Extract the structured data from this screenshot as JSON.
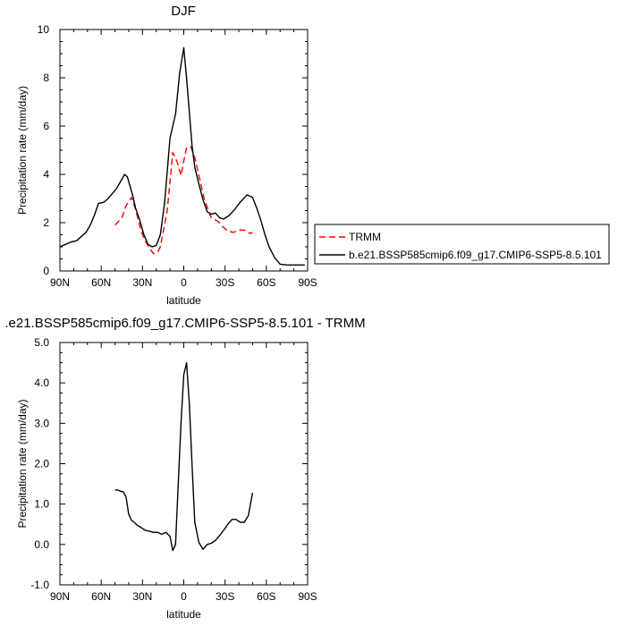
{
  "chart_data": [
    {
      "type": "line",
      "title": "DJF",
      "xlabel": "latitude",
      "ylabel": "Precipitation rate (mm/day)",
      "xlim": [
        90,
        -90
      ],
      "ylim": [
        0,
        10
      ],
      "xticks": [
        {
          "value": 90,
          "label": "90N"
        },
        {
          "value": 60,
          "label": "60N"
        },
        {
          "value": 30,
          "label": "30N"
        },
        {
          "value": 0,
          "label": "0"
        },
        {
          "value": -30,
          "label": "30S"
        },
        {
          "value": -60,
          "label": "60S"
        },
        {
          "value": -90,
          "label": "90S"
        }
      ],
      "yticks": [
        {
          "value": 0,
          "label": "0"
        },
        {
          "value": 2,
          "label": "2"
        },
        {
          "value": 4,
          "label": "4"
        },
        {
          "value": 6,
          "label": "6"
        },
        {
          "value": 8,
          "label": "8"
        },
        {
          "value": 10,
          "label": "10"
        }
      ],
      "legend": "right",
      "series": [
        {
          "name": "TRMM",
          "color": "#ff0000",
          "dash": true,
          "x": [
            50,
            45,
            42,
            38,
            35,
            31,
            28,
            25,
            22,
            19,
            17,
            12,
            8,
            5,
            2,
            0,
            -2,
            -5,
            -8,
            -12,
            -15,
            -20,
            -25,
            -28,
            -32,
            -36,
            -41,
            -45,
            -48,
            -50
          ],
          "y": [
            1.9,
            2.2,
            2.7,
            3.05,
            2.55,
            1.65,
            1.25,
            0.95,
            0.72,
            0.78,
            1.0,
            2.5,
            4.9,
            4.55,
            3.95,
            4.55,
            5.1,
            5.15,
            4.7,
            3.7,
            2.95,
            2.2,
            2.05,
            1.85,
            1.65,
            1.6,
            1.7,
            1.68,
            1.55,
            1.6
          ]
        },
        {
          "name": "b.e21.BSSP585cmip6.f09_g17.CMIP6-SSP5-8.5.101",
          "color": "#000000",
          "dash": false,
          "x": [
            90,
            86,
            82,
            78,
            75,
            71,
            68,
            65,
            62,
            58,
            55,
            52,
            49,
            45,
            43,
            41,
            39,
            37,
            35,
            32,
            29,
            26,
            23,
            20,
            17,
            14,
            10,
            6,
            3,
            0,
            -2,
            -4,
            -6,
            -8,
            -11,
            -14,
            -17,
            -20,
            -23,
            -26,
            -29,
            -33,
            -37,
            -41,
            -46,
            -50,
            -53,
            -56,
            -59,
            -62,
            -66,
            -70,
            -75,
            -80,
            -85,
            -88
          ],
          "y": [
            1.0,
            1.1,
            1.2,
            1.25,
            1.4,
            1.6,
            1.9,
            2.3,
            2.8,
            2.85,
            3.0,
            3.2,
            3.4,
            3.8,
            4.0,
            3.9,
            3.5,
            3.1,
            2.6,
            2.1,
            1.5,
            1.1,
            1.0,
            1.05,
            1.5,
            2.8,
            5.5,
            6.5,
            8.2,
            9.25,
            8.0,
            6.6,
            5.2,
            4.3,
            3.6,
            2.95,
            2.45,
            2.35,
            2.4,
            2.2,
            2.15,
            2.3,
            2.55,
            2.85,
            3.15,
            3.05,
            2.6,
            2.1,
            1.5,
            1.0,
            0.55,
            0.28,
            0.25,
            0.25,
            0.25,
            0.25
          ]
        }
      ]
    },
    {
      "type": "line",
      "title": ".e21.BSSP585cmip6.f09_g17.CMIP6-SSP5-8.5.101 - TRMM",
      "xlabel": "latitude",
      "ylabel": "Precipitation rate (mm/day)",
      "xlim": [
        90,
        -90
      ],
      "ylim": [
        -1.0,
        5.0
      ],
      "xticks": [
        {
          "value": 90,
          "label": "90N"
        },
        {
          "value": 60,
          "label": "60N"
        },
        {
          "value": 30,
          "label": "30N"
        },
        {
          "value": 0,
          "label": "0"
        },
        {
          "value": -30,
          "label": "30S"
        },
        {
          "value": -60,
          "label": "60S"
        },
        {
          "value": -90,
          "label": "90S"
        }
      ],
      "yticks": [
        {
          "value": -1.0,
          "label": "-1.0"
        },
        {
          "value": 0.0,
          "label": "0.0"
        },
        {
          "value": 1.0,
          "label": "1.0"
        },
        {
          "value": 2.0,
          "label": "2.0"
        },
        {
          "value": 3.0,
          "label": "3.0"
        },
        {
          "value": 4.0,
          "label": "4.0"
        },
        {
          "value": 5.0,
          "label": "5.0"
        }
      ],
      "series": [
        {
          "color": "#000000",
          "dash": false,
          "x": [
            50,
            48,
            46,
            44,
            42,
            40,
            38,
            36,
            34,
            31,
            28,
            25,
            22,
            19,
            16,
            13,
            10,
            8,
            6,
            4,
            2,
            0,
            -2,
            -4,
            -6,
            -8,
            -11,
            -14,
            -17,
            -20,
            -23,
            -26,
            -29,
            -32,
            -35,
            -38,
            -41,
            -44,
            -47,
            -50
          ],
          "y": [
            1.35,
            1.35,
            1.32,
            1.3,
            1.18,
            0.75,
            0.6,
            0.55,
            0.48,
            0.42,
            0.35,
            0.33,
            0.3,
            0.3,
            0.25,
            0.3,
            0.2,
            -0.15,
            0.0,
            1.5,
            3.0,
            4.2,
            4.5,
            3.5,
            2.0,
            0.55,
            0.05,
            -0.12,
            0.0,
            0.03,
            0.1,
            0.22,
            0.35,
            0.5,
            0.62,
            0.62,
            0.55,
            0.55,
            0.72,
            1.28
          ]
        }
      ]
    }
  ]
}
